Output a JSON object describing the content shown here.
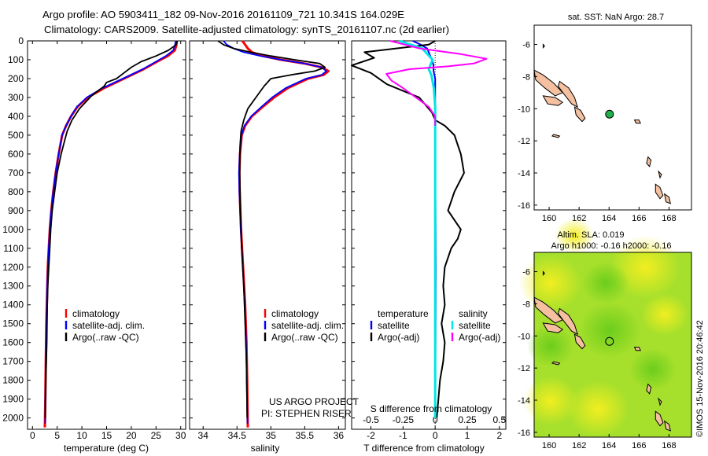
{
  "header": {
    "title_line1": "Argo profile: AO 5903411_182 09-Nov-2016 20161109_721 10.341S 164.029E",
    "title_line2": "Climatology: CARS2009. Satellite-adjusted climatology: synTS_20161107.nc (2d earlier)"
  },
  "colors": {
    "climatology": "#ff0000",
    "satellite_adj": "#0000ff",
    "argo": "#000000",
    "salinity_satellite": "#00e5e5",
    "salinity_argo": "#ff00ff",
    "land": "#f4c0a0",
    "float_marker": "#22b04a"
  },
  "credit": "©IMOS 15-Nov-2016 20:46:42",
  "chart_data": [
    {
      "type": "line",
      "panel": "temperature",
      "xlabel": "temperature (deg C)",
      "ylabel": "",
      "xlim": [
        -1,
        31
      ],
      "ylim": [
        2060,
        0
      ],
      "y_reversed": true,
      "xticks": [
        "0",
        "5",
        "10",
        "15",
        "20",
        "25",
        "30"
      ],
      "yticks": [
        "0",
        "100",
        "200",
        "300",
        "400",
        "500",
        "600",
        "700",
        "800",
        "900",
        "1000",
        "1100",
        "1200",
        "1300",
        "1400",
        "1500",
        "1600",
        "1700",
        "1800",
        "1900",
        "2000"
      ],
      "legend": {
        "entries": [
          "climatology",
          "satellite-adj. clim.",
          "Argo(..raw -QC)"
        ],
        "placement": "lower-center"
      },
      "series": [
        {
          "name": "climatology",
          "color": "#ff0000",
          "x": [
            29.2,
            29.1,
            28.8,
            27.4,
            25.2,
            22.5,
            18.5,
            14.5,
            11.2,
            9.1,
            7.8,
            6.8,
            6.0,
            5.3,
            4.7,
            4.2,
            3.8,
            3.5,
            3.3,
            3.1,
            3.0,
            2.8,
            2.7,
            2.6,
            2.5
          ],
          "y": [
            0,
            25,
            50,
            80,
            110,
            150,
            200,
            250,
            300,
            350,
            400,
            450,
            500,
            600,
            700,
            800,
            900,
            1000,
            1100,
            1200,
            1300,
            1500,
            1700,
            1900,
            2050
          ]
        },
        {
          "name": "satellite-adj. clim.",
          "color": "#0000ff",
          "x": [
            29.0,
            28.8,
            28.5,
            27.0,
            25.0,
            22.3,
            18.3,
            14.2,
            11.0,
            9.0,
            7.8,
            6.8,
            6.0,
            5.3,
            4.7,
            4.2,
            3.8,
            3.5,
            3.3,
            3.1,
            3.0,
            2.8,
            2.7,
            2.6,
            2.6
          ],
          "y": [
            0,
            25,
            50,
            80,
            110,
            150,
            200,
            250,
            300,
            350,
            400,
            450,
            500,
            600,
            700,
            800,
            900,
            1000,
            1100,
            1200,
            1300,
            1500,
            1700,
            1900,
            2030
          ]
        },
        {
          "name": "Argo(..raw -QC)",
          "color": "#000000",
          "x": [
            29.3,
            29.1,
            27.5,
            25.0,
            22.0,
            20.0,
            18.5,
            17.0,
            15.0,
            14.5,
            12.0,
            9.5,
            8.0,
            7.0,
            6.5,
            5.8,
            5.0,
            4.5,
            4.0,
            3.7,
            3.5,
            3.3,
            3.1,
            3.0,
            2.9,
            2.7,
            2.6
          ],
          "y": [
            0,
            20,
            50,
            80,
            110,
            140,
            170,
            200,
            220,
            240,
            290,
            360,
            420,
            480,
            530,
            600,
            700,
            800,
            900,
            1000,
            1100,
            1200,
            1300,
            1400,
            1600,
            1800,
            2000
          ]
        }
      ]
    },
    {
      "type": "line",
      "panel": "salinity",
      "xlabel": "salinity",
      "ylabel": "",
      "xlim": [
        33.8,
        36.1
      ],
      "ylim": [
        2060,
        0
      ],
      "y_reversed": true,
      "xticks": [
        "34",
        "34.5",
        "35",
        "35.5",
        "36"
      ],
      "legend": {
        "entries": [
          "climatology",
          "satellite-adj. clim.",
          "Argo(..raw -QC)"
        ],
        "placement": "lower-center"
      },
      "annotation": [
        "US ARGO PROJECT",
        "PI: STEPHEN RISER"
      ],
      "series": [
        {
          "name": "climatology",
          "color": "#ff0000",
          "x": [
            34.58,
            34.62,
            34.66,
            34.72,
            34.88,
            35.15,
            35.5,
            35.75,
            35.85,
            35.78,
            35.55,
            35.25,
            35.05,
            34.88,
            34.72,
            34.62,
            34.57,
            34.545,
            34.535,
            34.54,
            34.56,
            34.59,
            34.62,
            34.64,
            34.65,
            34.66
          ],
          "y": [
            0,
            20,
            40,
            60,
            80,
            100,
            120,
            140,
            160,
            180,
            200,
            250,
            300,
            350,
            400,
            450,
            500,
            600,
            700,
            800,
            1000,
            1200,
            1400,
            1600,
            1800,
            2050
          ]
        },
        {
          "name": "satellite-adj. clim.",
          "color": "#0000ff",
          "x": [
            34.3,
            34.35,
            34.45,
            34.6,
            34.85,
            35.15,
            35.5,
            35.75,
            35.82,
            35.75,
            35.52,
            35.22,
            35.02,
            34.86,
            34.71,
            34.61,
            34.565,
            34.54,
            34.53,
            34.535,
            34.555,
            34.585,
            34.615,
            34.635,
            34.645,
            34.655
          ],
          "y": [
            0,
            20,
            40,
            60,
            80,
            100,
            120,
            140,
            160,
            180,
            200,
            250,
            300,
            350,
            400,
            450,
            500,
            600,
            700,
            800,
            1000,
            1200,
            1400,
            1600,
            1800,
            2030
          ]
        },
        {
          "name": "Argo(..raw -QC)",
          "color": "#000000",
          "x": [
            34.22,
            34.3,
            34.45,
            34.7,
            35.0,
            35.35,
            35.72,
            35.8,
            35.65,
            35.3,
            35.0,
            34.9,
            34.82,
            34.74,
            34.66,
            34.6,
            34.56,
            34.545,
            34.54,
            34.55,
            34.57,
            34.6,
            34.62,
            34.64,
            34.65
          ],
          "y": [
            0,
            20,
            40,
            60,
            80,
            100,
            120,
            140,
            160,
            180,
            200,
            240,
            280,
            320,
            360,
            420,
            480,
            560,
            700,
            900,
            1100,
            1300,
            1500,
            1700,
            2000
          ]
        }
      ]
    },
    {
      "type": "line",
      "panel": "difference",
      "xlabel": "T difference from climatology",
      "xlabel_top": "S difference from climatology",
      "xlim_T": [
        -2.6,
        2.2
      ],
      "xlim_S": [
        -0.65,
        0.55
      ],
      "ylim": [
        2060,
        0
      ],
      "y_reversed": true,
      "xticks_T": [
        "-2",
        "-1",
        "0",
        "1",
        "2"
      ],
      "xticks_S": [
        "-0.5",
        "-0.25",
        "0",
        "0.25",
        "0.5"
      ],
      "legend": {
        "temperature_header": "temperature",
        "salinity_header": "salinity",
        "entries": [
          "satellite",
          "Argo(-adj)",
          "satellite",
          "Argo(-adj)"
        ],
        "placement": "lower-center"
      },
      "series": [
        {
          "name": "temperature satellite",
          "quantity": "T",
          "color": "#0000ff",
          "x": [
            -0.7,
            -0.45,
            -0.25,
            -0.2,
            -0.15,
            -0.1,
            -0.05,
            -0.05,
            0.0,
            0.0,
            0.0,
            0.02,
            0.0
          ],
          "y": [
            0,
            20,
            40,
            60,
            80,
            100,
            130,
            160,
            200,
            300,
            600,
            1200,
            2000
          ]
        },
        {
          "name": "temperature Argo(-adj)",
          "quantity": "T",
          "color": "#000000",
          "x": [
            0.0,
            -0.2,
            -2.2,
            -1.9,
            -2.6,
            -2.0,
            -1.5,
            -0.5,
            -0.1,
            0.0,
            0.3,
            0.6,
            0.8,
            0.9,
            0.6,
            0.4,
            0.8,
            0.7,
            0.5,
            0.3,
            0.25,
            0.3,
            0.2,
            0.3,
            0.25,
            0.15,
            0.1,
            0.05
          ],
          "y": [
            0,
            20,
            60,
            90,
            130,
            170,
            230,
            300,
            380,
            420,
            450,
            500,
            600,
            700,
            800,
            900,
            1000,
            1050,
            1100,
            1200,
            1300,
            1400,
            1500,
            1600,
            1700,
            1800,
            1900,
            2000
          ]
        },
        {
          "name": "salinity satellite",
          "quantity": "S",
          "color": "#00e5e5",
          "x": [
            -0.28,
            -0.1,
            -0.02,
            -0.05,
            -0.03,
            -0.01,
            0.0,
            0.0,
            0.0,
            0.0,
            0.0,
            0.0
          ],
          "y": [
            0,
            40,
            100,
            150,
            180,
            250,
            350,
            500,
            700,
            1000,
            1500,
            2000
          ]
        },
        {
          "name": "salinity Argo(-adj)",
          "quantity": "S",
          "color": "#ff00ff",
          "x": [
            -0.35,
            -0.12,
            0.2,
            0.4,
            0.3,
            0.1,
            -0.2,
            -0.38,
            -0.34,
            -0.25,
            -0.15,
            -0.05,
            0.0,
            0.0
          ],
          "y": [
            0,
            40,
            70,
            95,
            120,
            135,
            150,
            175,
            210,
            250,
            300,
            350,
            400,
            450
          ]
        }
      ]
    },
    {
      "type": "map",
      "panel": "sst_map",
      "title": "sat. SST: NaN Argo: 28.7",
      "xlim": [
        159,
        169.5
      ],
      "ylim": [
        -16.3,
        -4.8
      ],
      "xticks": [
        "160",
        "162",
        "164",
        "166",
        "168"
      ],
      "yticks": [
        "-6",
        "-8",
        "-10",
        "-12",
        "-14",
        "-16"
      ],
      "float_position": {
        "lon": 164.029,
        "lat": -10.341
      }
    },
    {
      "type": "heatmap",
      "panel": "sla_map",
      "title_line1": "Altim. SLA: 0.019",
      "title_line2": "Argo h1000: -0.16 h2000: -0.16",
      "xlim": [
        159,
        169.5
      ],
      "ylim": [
        -16.3,
        -4.8
      ],
      "xticks": [
        "160",
        "162",
        "164",
        "166",
        "168"
      ],
      "yticks": [
        "-6",
        "-8",
        "-10",
        "-12",
        "-14",
        "-16"
      ],
      "float_position": {
        "lon": 164.029,
        "lat": -10.341
      }
    }
  ]
}
